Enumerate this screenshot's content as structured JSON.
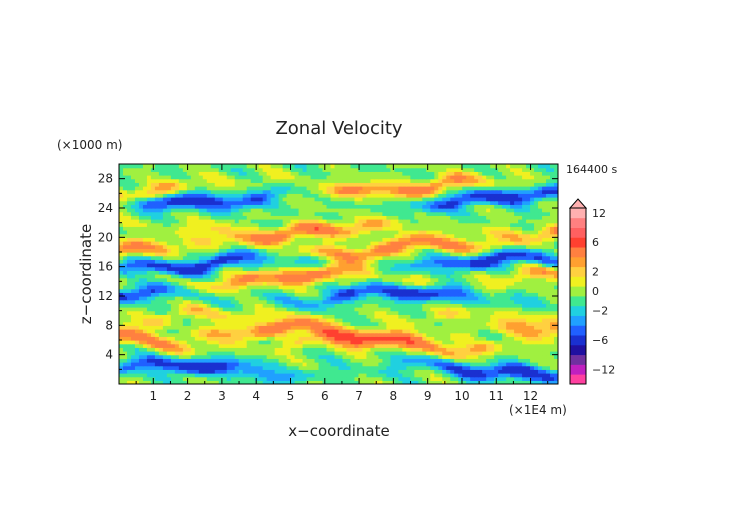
{
  "chart_data": {
    "type": "heatmap",
    "title": "Zonal Velocity",
    "xlabel": "x−coordinate",
    "ylabel": "z−coordinate",
    "x_unit": "(×1E4 m)",
    "y_unit": "(×1000 m)",
    "time_label": "164400 s",
    "xlim": [
      0,
      12.8
    ],
    "ylim": [
      0,
      30
    ],
    "x_ticks": [
      1,
      2,
      3,
      4,
      5,
      6,
      7,
      8,
      9,
      10,
      11,
      12
    ],
    "y_ticks": [
      4,
      8,
      12,
      16,
      20,
      24,
      28
    ],
    "x_tick_labels": [
      "1",
      "2",
      "3",
      "4",
      "5",
      "6",
      "7",
      "8",
      "9",
      "10",
      "11",
      "12"
    ],
    "y_tick_labels": [
      "4",
      "8",
      "12",
      "16",
      "20",
      "24",
      "28"
    ],
    "colorbar": {
      "levels": [
        -14,
        -12,
        -10,
        -8,
        -6,
        -4,
        -3,
        -2,
        -1,
        0,
        1,
        2,
        3,
        4,
        6,
        8,
        10,
        12,
        14
      ],
      "colors": [
        "#ff40a0",
        "#c020c0",
        "#7030a0",
        "#2010a0",
        "#1a30d0",
        "#2060ff",
        "#20a0ff",
        "#20d0e0",
        "#40e890",
        "#a0f040",
        "#f0f020",
        "#ffd040",
        "#ffa030",
        "#ff8040",
        "#ff4030",
        "#ff6060",
        "#ff8080",
        "#ffb0b0"
      ],
      "tick_labels": [
        "12",
        "6",
        "2",
        "0",
        "−2",
        "−6",
        "−12"
      ],
      "tick_values": [
        12,
        6,
        2,
        0,
        -2,
        -6,
        -12
      ],
      "extend_top": true
    },
    "dominant_bands": [
      {
        "z": 2.0,
        "sign": "negative"
      },
      {
        "z": 5.5,
        "sign": "positive"
      },
      {
        "z": 7.0,
        "sign": "positive"
      },
      {
        "z": 9.0,
        "sign": "mixed"
      },
      {
        "z": 12.0,
        "sign": "negative"
      },
      {
        "z": 14.5,
        "sign": "positive"
      },
      {
        "z": 16.5,
        "sign": "negative"
      },
      {
        "z": 18.5,
        "sign": "positive"
      },
      {
        "z": 21.0,
        "sign": "positive"
      },
      {
        "z": 25.5,
        "sign": "negative"
      },
      {
        "z": 27.0,
        "sign": "positive"
      }
    ]
  }
}
